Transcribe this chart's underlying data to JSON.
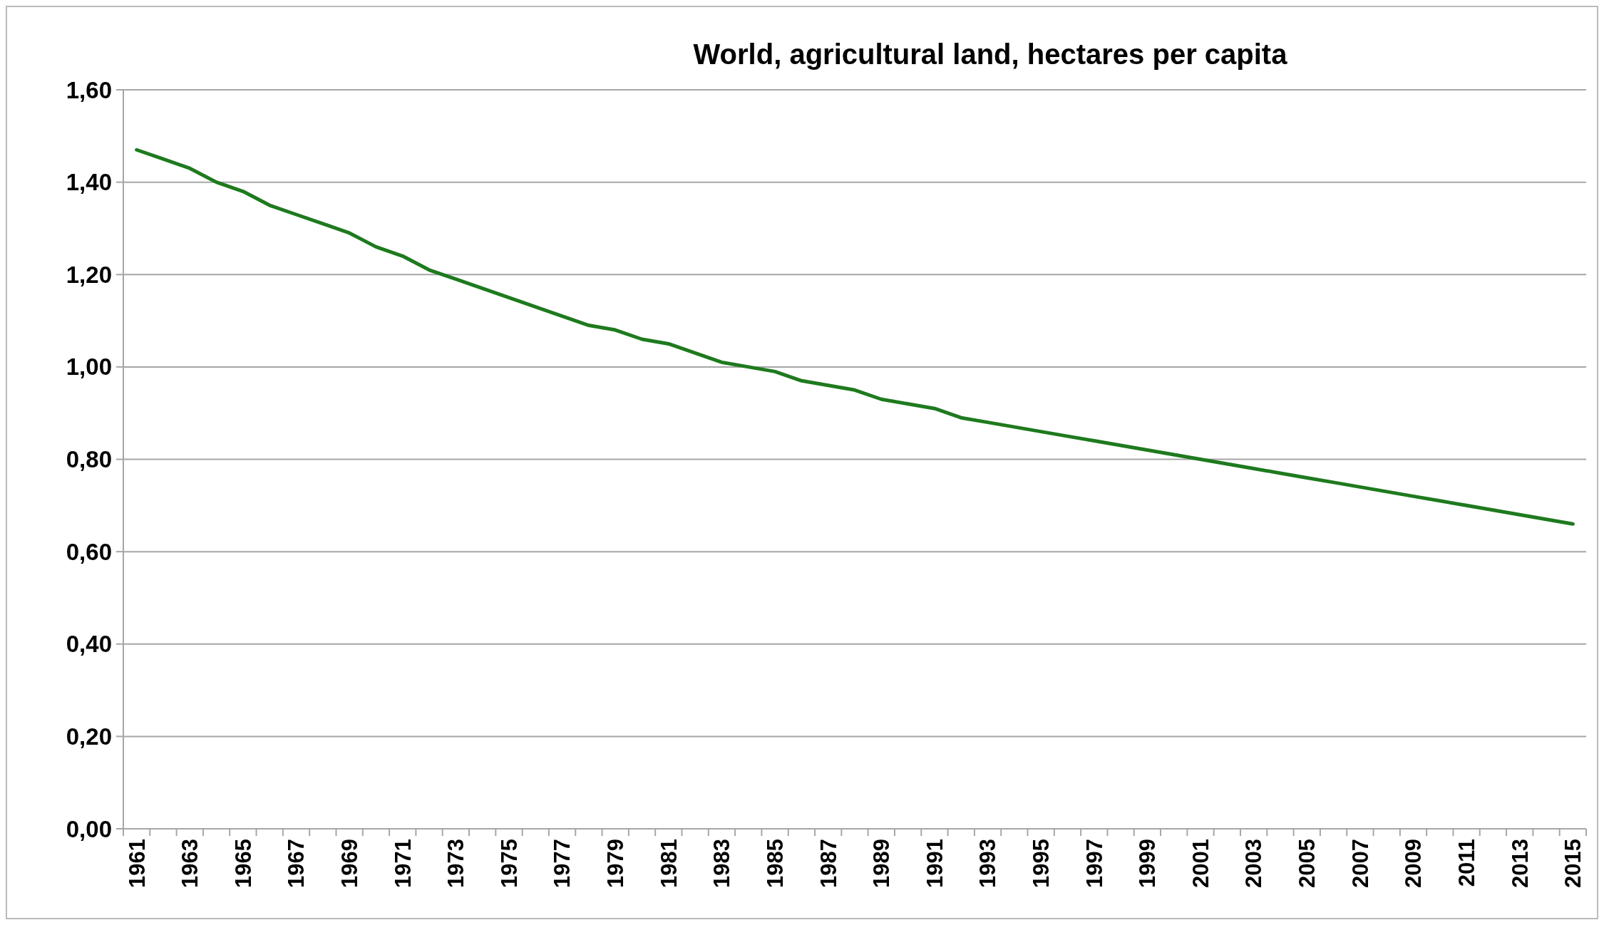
{
  "chart_data": {
    "type": "line",
    "title": "World, agricultural land, hectares per capita",
    "categories": [
      "1961",
      null,
      "1963",
      null,
      "1965",
      null,
      "1967",
      null,
      "1969",
      null,
      "1971",
      null,
      "1973",
      null,
      "1975",
      null,
      "1977",
      null,
      "1979",
      null,
      "1981",
      null,
      "1983",
      null,
      "1985",
      null,
      "1987",
      null,
      "1989",
      null,
      "1991",
      null,
      "1993",
      null,
      "1995",
      null,
      "1997",
      null,
      "1999",
      null,
      "2001",
      null,
      "2003",
      null,
      "2005",
      null,
      "2007",
      null,
      "2009",
      null,
      "2011",
      null,
      "2013",
      null,
      "2015"
    ],
    "series": [
      {
        "color": "#1e7a1e",
        "values": [
          1.47,
          1.45,
          1.43,
          1.4,
          1.38,
          1.35,
          1.33,
          1.31,
          1.29,
          1.26,
          1.24,
          1.21,
          1.19,
          1.17,
          1.15,
          1.13,
          1.11,
          1.09,
          1.08,
          1.06,
          1.05,
          1.03,
          1.01,
          1.0,
          0.99,
          0.97,
          0.96,
          0.95,
          0.93,
          0.92,
          0.91,
          0.89,
          0.88,
          0.87,
          0.86,
          0.85,
          0.84,
          0.83,
          0.82,
          0.81,
          0.8,
          0.79,
          0.78,
          0.77,
          0.76,
          0.75,
          0.74,
          0.73,
          0.72,
          0.71,
          0.7,
          0.69,
          0.68,
          0.67,
          0.66
        ]
      }
    ],
    "ylim": [
      0,
      1.6
    ],
    "yticks": [
      {
        "value": 0,
        "label": "0,00"
      },
      {
        "value": 0.2,
        "label": "0,20"
      },
      {
        "value": 0.4,
        "label": "0,40"
      },
      {
        "value": 0.6,
        "label": "0,60"
      },
      {
        "value": 0.8,
        "label": "0,80"
      },
      {
        "value": 1,
        "label": "1,00"
      },
      {
        "value": 1.2,
        "label": "1,20"
      },
      {
        "value": 1.4,
        "label": "1,40"
      },
      {
        "value": 1.6,
        "label": "1,60"
      }
    ],
    "grid": "y",
    "marker": "none",
    "line_style": "solid"
  }
}
